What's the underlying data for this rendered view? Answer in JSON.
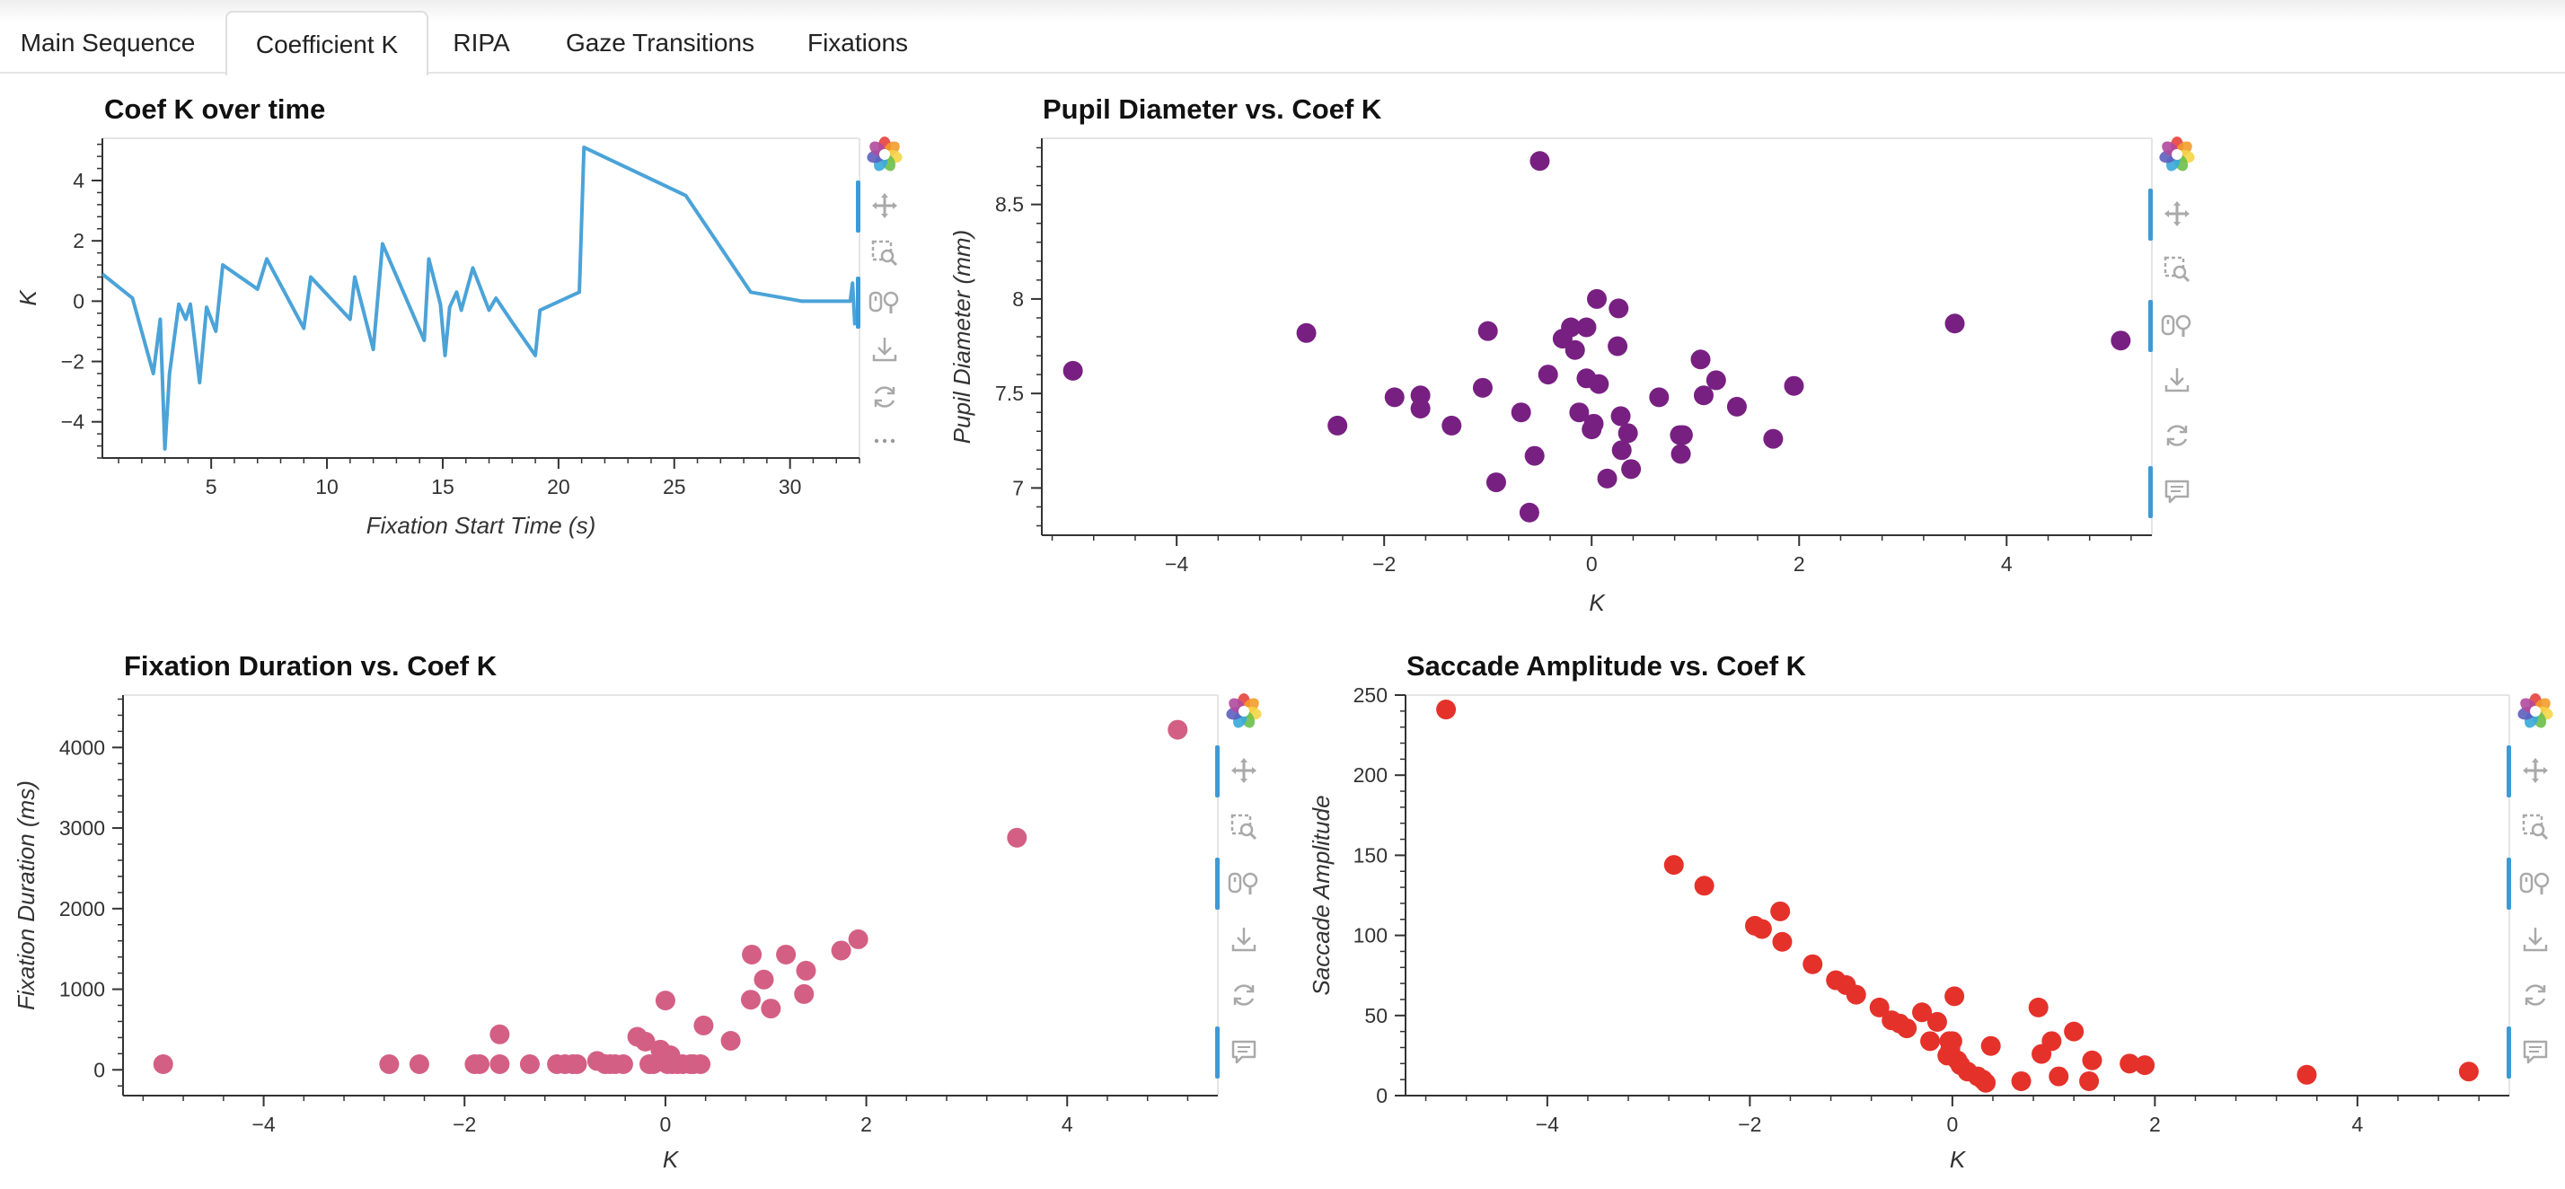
{
  "tabs": [
    {
      "label": "Main Sequence",
      "active": false
    },
    {
      "label": "Coefficient K",
      "active": true
    },
    {
      "label": "RIPA",
      "active": false
    },
    {
      "label": "Gaze Transitions",
      "active": false
    },
    {
      "label": "Fixations",
      "active": false
    }
  ],
  "toolbar_icons": [
    "bokeh-logo-icon",
    "pan-icon",
    "box-zoom-icon",
    "wheel-zoom-icon",
    "save-icon",
    "reset-icon",
    "hover-icon"
  ],
  "chart_data": [
    {
      "id": "k-over-time",
      "type": "line",
      "title": "Coef K over time",
      "xlabel": "Fixation Start Time (s)",
      "ylabel": "K",
      "xlim": [
        0.3,
        33
      ],
      "ylim": [
        -5.2,
        5.4
      ],
      "xticks": [
        5,
        10,
        15,
        20,
        25,
        30
      ],
      "yticks": [
        -4,
        -2,
        0,
        2,
        4
      ],
      "color": "#4ba3d8",
      "x": [
        0.3,
        1.6,
        2.5,
        2.8,
        3.0,
        3.2,
        3.6,
        3.9,
        4.1,
        4.5,
        4.8,
        5.2,
        5.5,
        7.0,
        7.4,
        9.0,
        9.3,
        11.0,
        11.2,
        12.0,
        12.4,
        14.2,
        14.4,
        14.9,
        15.1,
        15.3,
        15.6,
        15.8,
        16.3,
        17.0,
        17.3,
        18.0,
        19.0,
        19.2,
        20.9,
        21.1,
        25.5,
        28.3,
        30.5,
        32.6,
        32.7,
        32.8
      ],
      "y": [
        0.9,
        0.1,
        -2.4,
        -0.6,
        -4.9,
        -2.4,
        -0.1,
        -0.6,
        -0.1,
        -2.7,
        -0.2,
        -1.0,
        1.2,
        0.4,
        1.4,
        -0.9,
        0.8,
        -0.6,
        0.8,
        -1.6,
        1.9,
        -1.3,
        1.4,
        -0.1,
        -1.8,
        -0.2,
        0.3,
        -0.3,
        1.1,
        -0.3,
        0.1,
        -0.7,
        -1.8,
        -0.3,
        0.3,
        5.1,
        3.5,
        0.3,
        0.0,
        0.0,
        0.6,
        -0.8
      ]
    },
    {
      "id": "pupil-vs-k",
      "type": "scatter",
      "title": "Pupil Diameter vs. Coef K",
      "xlabel": "K",
      "ylabel": "Pupil Diameter (mm)",
      "xlim": [
        -5.3,
        5.4
      ],
      "ylim": [
        6.75,
        8.85
      ],
      "xticks": [
        -4,
        -2,
        0,
        2,
        4
      ],
      "yticks": [
        7,
        7.5,
        8,
        8.5
      ],
      "ytick_labels": [
        "7",
        "7.5",
        "8",
        "8.5"
      ],
      "color": "#782082",
      "x": [
        -5.0,
        -2.75,
        -2.45,
        -1.9,
        -1.65,
        -1.65,
        -1.35,
        -1.05,
        -1.0,
        -0.92,
        -0.68,
        -0.6,
        -0.55,
        -0.5,
        -0.42,
        -0.28,
        -0.2,
        -0.16,
        -0.12,
        -0.05,
        -0.05,
        0.0,
        0.02,
        0.05,
        0.07,
        0.15,
        0.25,
        0.26,
        0.28,
        0.29,
        0.35,
        0.38,
        0.65,
        0.85,
        0.86,
        0.88,
        1.05,
        1.08,
        1.2,
        1.4,
        1.75,
        1.95,
        3.5,
        5.1
      ],
      "y": [
        7.62,
        7.82,
        7.33,
        7.48,
        7.49,
        7.42,
        7.33,
        7.53,
        7.83,
        7.03,
        7.4,
        6.87,
        7.17,
        8.73,
        7.6,
        7.79,
        7.85,
        7.73,
        7.4,
        7.58,
        7.85,
        7.31,
        7.34,
        8.0,
        7.55,
        7.05,
        7.75,
        7.95,
        7.38,
        7.2,
        7.29,
        7.1,
        7.48,
        7.28,
        7.18,
        7.28,
        7.68,
        7.49,
        7.57,
        7.43,
        7.26,
        7.54,
        7.87,
        7.78
      ]
    },
    {
      "id": "duration-vs-k",
      "type": "scatter",
      "title": "Fixation Duration vs. Coef K",
      "xlabel": "K",
      "ylabel": "Fixation Duration (ms)",
      "xlim": [
        -5.4,
        5.5
      ],
      "ylim": [
        -320,
        4650
      ],
      "xticks": [
        -4,
        -2,
        0,
        2,
        4
      ],
      "yticks": [
        0,
        1000,
        2000,
        3000,
        4000
      ],
      "color": "#d45f84",
      "x": [
        -5.0,
        -2.75,
        -2.45,
        -1.9,
        -1.85,
        -1.65,
        -1.65,
        -1.35,
        -1.08,
        -1.0,
        -0.92,
        -0.88,
        -0.68,
        -0.6,
        -0.55,
        -0.5,
        -0.42,
        -0.28,
        -0.2,
        -0.16,
        -0.12,
        -0.05,
        -0.03,
        0.0,
        0.02,
        0.05,
        0.07,
        0.12,
        0.17,
        0.25,
        0.28,
        0.35,
        0.38,
        0.65,
        0.85,
        0.86,
        0.98,
        1.05,
        1.2,
        1.38,
        1.4,
        1.75,
        1.92,
        3.5,
        5.1
      ],
      "y": [
        70,
        70,
        70,
        70,
        70,
        70,
        440,
        70,
        70,
        70,
        70,
        70,
        110,
        70,
        70,
        70,
        70,
        410,
        350,
        70,
        70,
        250,
        130,
        860,
        70,
        180,
        70,
        70,
        70,
        70,
        70,
        70,
        550,
        360,
        870,
        1430,
        1120,
        760,
        1430,
        940,
        1230,
        1480,
        1620,
        2880,
        4220
      ]
    },
    {
      "id": "saccade-vs-k",
      "type": "scatter",
      "title": "Saccade Amplitude vs. Coef K",
      "xlabel": "K",
      "ylabel": "Saccade Amplitude",
      "xlim": [
        -5.4,
        5.5
      ],
      "ylim": [
        0,
        250
      ],
      "xticks": [
        -4,
        -2,
        0,
        2,
        4
      ],
      "yticks": [
        0,
        50,
        100,
        150,
        200,
        250
      ],
      "color": "#e4322b",
      "x": [
        -5.0,
        -2.75,
        -2.45,
        -1.95,
        -1.88,
        -1.7,
        -1.68,
        -1.38,
        -1.15,
        -1.05,
        -0.95,
        -0.72,
        -0.6,
        -0.52,
        -0.45,
        -0.3,
        -0.22,
        -0.15,
        -0.05,
        -0.03,
        -0.02,
        0.0,
        0.02,
        0.05,
        0.08,
        0.15,
        0.25,
        0.3,
        0.33,
        0.38,
        0.68,
        0.85,
        0.88,
        0.98,
        1.05,
        1.2,
        1.35,
        1.38,
        1.75,
        1.9,
        3.5,
        5.1
      ],
      "y": [
        241,
        144,
        131,
        106,
        104,
        115,
        96,
        82,
        72,
        69,
        63,
        55,
        47,
        45,
        42,
        52,
        34,
        46,
        25,
        34,
        29,
        34,
        62,
        22,
        19,
        15,
        12,
        10,
        8,
        31,
        9,
        55,
        26,
        34,
        12,
        40,
        9,
        22,
        20,
        19,
        13,
        15
      ]
    }
  ]
}
